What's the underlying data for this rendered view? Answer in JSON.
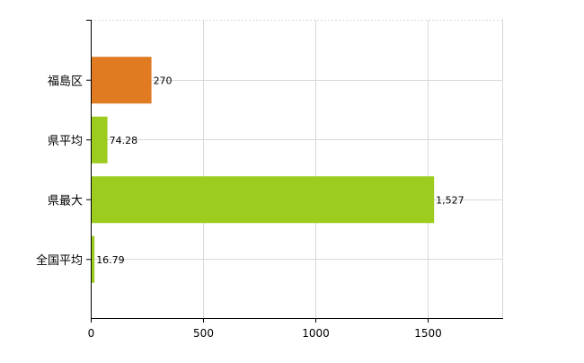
{
  "chart_data": {
    "type": "bar",
    "orientation": "horizontal",
    "categories": [
      "福島区",
      "県平均",
      "県最大",
      "全国平均"
    ],
    "values": [
      270,
      74.28,
      1527,
      16.79
    ],
    "value_labels": [
      "270",
      "74.28",
      "1,527",
      "16.79"
    ],
    "bar_colors": [
      "#e07b22",
      "#9ccc1e",
      "#9ccc1e",
      "#9ccc1e"
    ],
    "xlim": [
      0,
      1830
    ],
    "xticks": [
      0,
      500,
      1000,
      1500
    ],
    "xtick_labels": [
      "0",
      "500",
      "1000",
      "1500"
    ],
    "grid": true,
    "legend": "none",
    "colors": {
      "highlight": "#e07b22",
      "default": "#9ccc1e",
      "grid": "#d9d9d9",
      "axis": "#000000"
    }
  }
}
